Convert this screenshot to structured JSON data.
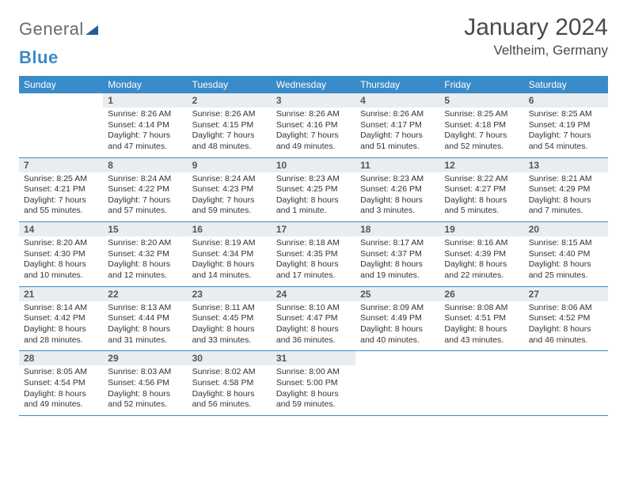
{
  "logo": {
    "text1": "General",
    "text2": "Blue"
  },
  "title": "January 2024",
  "location": "Veltheim, Germany",
  "colors": {
    "header_bg": "#3a8bc9",
    "daynum_bg": "#e9edf0",
    "border": "#3a8bc9",
    "text": "#333333",
    "title": "#4a4a4a"
  },
  "day_names": [
    "Sunday",
    "Monday",
    "Tuesday",
    "Wednesday",
    "Thursday",
    "Friday",
    "Saturday"
  ],
  "weeks": [
    [
      null,
      {
        "n": "1",
        "sr": "Sunrise: 8:26 AM",
        "ss": "Sunset: 4:14 PM",
        "d1": "Daylight: 7 hours",
        "d2": "and 47 minutes."
      },
      {
        "n": "2",
        "sr": "Sunrise: 8:26 AM",
        "ss": "Sunset: 4:15 PM",
        "d1": "Daylight: 7 hours",
        "d2": "and 48 minutes."
      },
      {
        "n": "3",
        "sr": "Sunrise: 8:26 AM",
        "ss": "Sunset: 4:16 PM",
        "d1": "Daylight: 7 hours",
        "d2": "and 49 minutes."
      },
      {
        "n": "4",
        "sr": "Sunrise: 8:26 AM",
        "ss": "Sunset: 4:17 PM",
        "d1": "Daylight: 7 hours",
        "d2": "and 51 minutes."
      },
      {
        "n": "5",
        "sr": "Sunrise: 8:25 AM",
        "ss": "Sunset: 4:18 PM",
        "d1": "Daylight: 7 hours",
        "d2": "and 52 minutes."
      },
      {
        "n": "6",
        "sr": "Sunrise: 8:25 AM",
        "ss": "Sunset: 4:19 PM",
        "d1": "Daylight: 7 hours",
        "d2": "and 54 minutes."
      }
    ],
    [
      {
        "n": "7",
        "sr": "Sunrise: 8:25 AM",
        "ss": "Sunset: 4:21 PM",
        "d1": "Daylight: 7 hours",
        "d2": "and 55 minutes."
      },
      {
        "n": "8",
        "sr": "Sunrise: 8:24 AM",
        "ss": "Sunset: 4:22 PM",
        "d1": "Daylight: 7 hours",
        "d2": "and 57 minutes."
      },
      {
        "n": "9",
        "sr": "Sunrise: 8:24 AM",
        "ss": "Sunset: 4:23 PM",
        "d1": "Daylight: 7 hours",
        "d2": "and 59 minutes."
      },
      {
        "n": "10",
        "sr": "Sunrise: 8:23 AM",
        "ss": "Sunset: 4:25 PM",
        "d1": "Daylight: 8 hours",
        "d2": "and 1 minute."
      },
      {
        "n": "11",
        "sr": "Sunrise: 8:23 AM",
        "ss": "Sunset: 4:26 PM",
        "d1": "Daylight: 8 hours",
        "d2": "and 3 minutes."
      },
      {
        "n": "12",
        "sr": "Sunrise: 8:22 AM",
        "ss": "Sunset: 4:27 PM",
        "d1": "Daylight: 8 hours",
        "d2": "and 5 minutes."
      },
      {
        "n": "13",
        "sr": "Sunrise: 8:21 AM",
        "ss": "Sunset: 4:29 PM",
        "d1": "Daylight: 8 hours",
        "d2": "and 7 minutes."
      }
    ],
    [
      {
        "n": "14",
        "sr": "Sunrise: 8:20 AM",
        "ss": "Sunset: 4:30 PM",
        "d1": "Daylight: 8 hours",
        "d2": "and 10 minutes."
      },
      {
        "n": "15",
        "sr": "Sunrise: 8:20 AM",
        "ss": "Sunset: 4:32 PM",
        "d1": "Daylight: 8 hours",
        "d2": "and 12 minutes."
      },
      {
        "n": "16",
        "sr": "Sunrise: 8:19 AM",
        "ss": "Sunset: 4:34 PM",
        "d1": "Daylight: 8 hours",
        "d2": "and 14 minutes."
      },
      {
        "n": "17",
        "sr": "Sunrise: 8:18 AM",
        "ss": "Sunset: 4:35 PM",
        "d1": "Daylight: 8 hours",
        "d2": "and 17 minutes."
      },
      {
        "n": "18",
        "sr": "Sunrise: 8:17 AM",
        "ss": "Sunset: 4:37 PM",
        "d1": "Daylight: 8 hours",
        "d2": "and 19 minutes."
      },
      {
        "n": "19",
        "sr": "Sunrise: 8:16 AM",
        "ss": "Sunset: 4:39 PM",
        "d1": "Daylight: 8 hours",
        "d2": "and 22 minutes."
      },
      {
        "n": "20",
        "sr": "Sunrise: 8:15 AM",
        "ss": "Sunset: 4:40 PM",
        "d1": "Daylight: 8 hours",
        "d2": "and 25 minutes."
      }
    ],
    [
      {
        "n": "21",
        "sr": "Sunrise: 8:14 AM",
        "ss": "Sunset: 4:42 PM",
        "d1": "Daylight: 8 hours",
        "d2": "and 28 minutes."
      },
      {
        "n": "22",
        "sr": "Sunrise: 8:13 AM",
        "ss": "Sunset: 4:44 PM",
        "d1": "Daylight: 8 hours",
        "d2": "and 31 minutes."
      },
      {
        "n": "23",
        "sr": "Sunrise: 8:11 AM",
        "ss": "Sunset: 4:45 PM",
        "d1": "Daylight: 8 hours",
        "d2": "and 33 minutes."
      },
      {
        "n": "24",
        "sr": "Sunrise: 8:10 AM",
        "ss": "Sunset: 4:47 PM",
        "d1": "Daylight: 8 hours",
        "d2": "and 36 minutes."
      },
      {
        "n": "25",
        "sr": "Sunrise: 8:09 AM",
        "ss": "Sunset: 4:49 PM",
        "d1": "Daylight: 8 hours",
        "d2": "and 40 minutes."
      },
      {
        "n": "26",
        "sr": "Sunrise: 8:08 AM",
        "ss": "Sunset: 4:51 PM",
        "d1": "Daylight: 8 hours",
        "d2": "and 43 minutes."
      },
      {
        "n": "27",
        "sr": "Sunrise: 8:06 AM",
        "ss": "Sunset: 4:52 PM",
        "d1": "Daylight: 8 hours",
        "d2": "and 46 minutes."
      }
    ],
    [
      {
        "n": "28",
        "sr": "Sunrise: 8:05 AM",
        "ss": "Sunset: 4:54 PM",
        "d1": "Daylight: 8 hours",
        "d2": "and 49 minutes."
      },
      {
        "n": "29",
        "sr": "Sunrise: 8:03 AM",
        "ss": "Sunset: 4:56 PM",
        "d1": "Daylight: 8 hours",
        "d2": "and 52 minutes."
      },
      {
        "n": "30",
        "sr": "Sunrise: 8:02 AM",
        "ss": "Sunset: 4:58 PM",
        "d1": "Daylight: 8 hours",
        "d2": "and 56 minutes."
      },
      {
        "n": "31",
        "sr": "Sunrise: 8:00 AM",
        "ss": "Sunset: 5:00 PM",
        "d1": "Daylight: 8 hours",
        "d2": "and 59 minutes."
      },
      null,
      null,
      null
    ]
  ]
}
